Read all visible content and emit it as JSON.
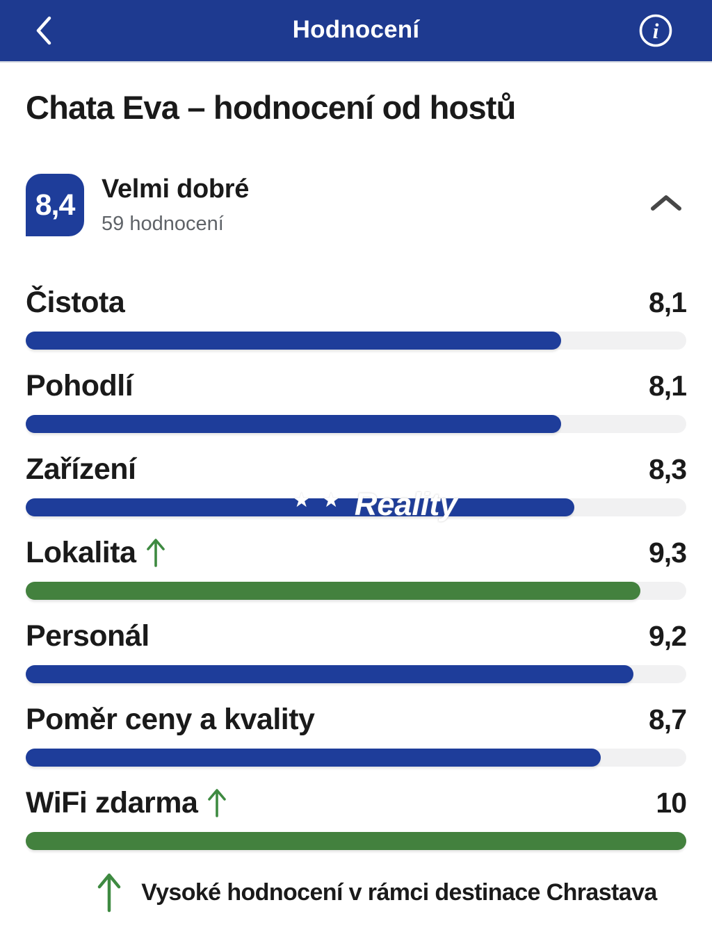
{
  "header": {
    "title": "Hodnocení",
    "back_icon": "chevron-left",
    "info_icon": "i"
  },
  "page": {
    "title": "Chata Eva – hodnocení od hostů"
  },
  "summary": {
    "score": "8,4",
    "label": "Velmi dobré",
    "reviews_count": "59 hodnocení",
    "collapse_icon": "chevron-up"
  },
  "ratings": [
    {
      "label": "Čistota",
      "value": "8,1",
      "percent": 81,
      "color": "blue",
      "high_in_destination": false
    },
    {
      "label": "Pohodlí",
      "value": "8,1",
      "percent": 81,
      "color": "blue",
      "high_in_destination": false
    },
    {
      "label": "Zařízení",
      "value": "8,3",
      "percent": 83,
      "color": "blue",
      "high_in_destination": false,
      "watermark": true
    },
    {
      "label": "Lokalita",
      "value": "9,3",
      "percent": 93,
      "color": "green",
      "high_in_destination": true
    },
    {
      "label": "Personál",
      "value": "9,2",
      "percent": 92,
      "color": "blue",
      "high_in_destination": false
    },
    {
      "label": "Poměr ceny a kvality",
      "value": "8,7",
      "percent": 87,
      "color": "blue",
      "high_in_destination": false
    },
    {
      "label": "WiFi zdarma",
      "value": "10",
      "percent": 100,
      "color": "green",
      "high_in_destination": true
    }
  ],
  "watermark": {
    "stars": "★ ★",
    "text": "Reality"
  },
  "footnote": {
    "arrow_icon": "arrow-up",
    "text": "Vysoké hodnocení v rámci destinace Chrastava"
  },
  "colors": {
    "header_blue": "#1e3a90",
    "accent_blue": "#1e3d9a",
    "green": "#43813e",
    "arrow_green": "#3e8a41",
    "track_gray": "#f1f1f2",
    "text_dark": "#1a1a1a",
    "text_gray": "#5f6368"
  }
}
